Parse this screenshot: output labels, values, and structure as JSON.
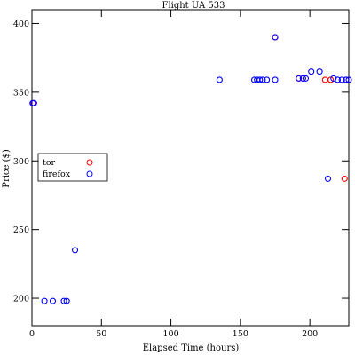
{
  "chart_data": {
    "type": "scatter",
    "title": "Flight UA 533",
    "xlabel": "Elapsed Time (hours)",
    "ylabel": "Price ($)",
    "xlim": [
      0,
      228
    ],
    "ylim": [
      180,
      410
    ],
    "xticks": [
      0,
      50,
      100,
      150,
      200
    ],
    "yticks": [
      200,
      250,
      300,
      350,
      400
    ],
    "grid": false,
    "legend_position": "center-left",
    "series": [
      {
        "name": "tor",
        "color": "#ff0000",
        "marker": "open-circle",
        "points": [
          [
            1,
            342
          ],
          [
            175,
            390
          ],
          [
            192,
            360
          ],
          [
            195,
            360
          ],
          [
            211,
            359
          ],
          [
            215,
            359
          ],
          [
            225,
            287
          ],
          [
            226,
            359
          ]
        ]
      },
      {
        "name": "firefox",
        "color": "#0000ff",
        "marker": "open-circle",
        "points": [
          [
            0.5,
            342
          ],
          [
            1.5,
            342
          ],
          [
            9,
            198
          ],
          [
            15,
            198
          ],
          [
            23,
            198
          ],
          [
            25,
            198
          ],
          [
            31,
            235
          ],
          [
            135,
            359
          ],
          [
            160,
            359
          ],
          [
            162,
            359
          ],
          [
            164,
            359
          ],
          [
            166,
            359
          ],
          [
            169,
            359
          ],
          [
            175,
            359
          ],
          [
            175,
            390
          ],
          [
            192,
            360
          ],
          [
            195,
            360
          ],
          [
            197,
            360
          ],
          [
            201,
            365
          ],
          [
            207,
            365
          ],
          [
            213,
            287
          ],
          [
            217,
            360
          ],
          [
            220,
            359
          ],
          [
            223,
            359
          ],
          [
            226,
            359
          ],
          [
            228,
            359
          ]
        ]
      }
    ]
  }
}
